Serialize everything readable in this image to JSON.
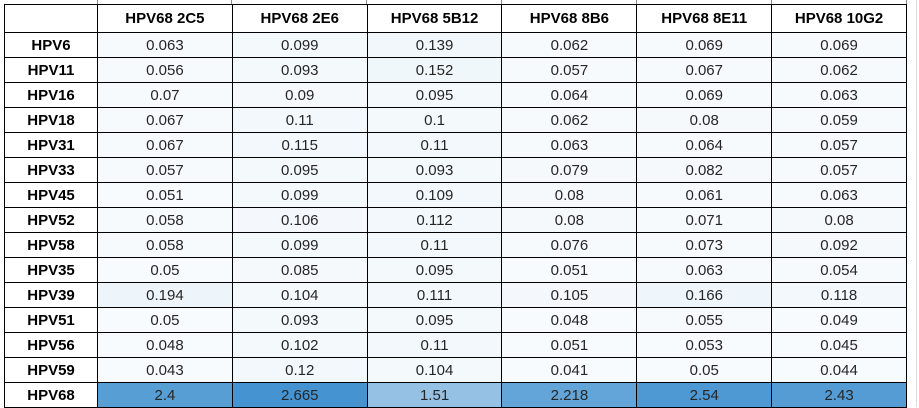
{
  "chart_data": {
    "type": "heatmap",
    "title": "",
    "corner_label": "",
    "columns": [
      "HPV68 2C5",
      "HPV68 2E6",
      "HPV68 5B12",
      "HPV68 8B6",
      "HPV68 8E11",
      "HPV68 10G2"
    ],
    "row_labels": [
      "HPV6",
      "HPV11",
      "HPV16",
      "HPV18",
      "HPV31",
      "HPV33",
      "HPV45",
      "HPV52",
      "HPV58",
      "HPV35",
      "HPV39",
      "HPV51",
      "HPV56",
      "HPV59",
      "HPV68"
    ],
    "values": [
      [
        "0.063",
        "0.099",
        "0.139",
        "0.062",
        "0.069",
        "0.069"
      ],
      [
        "0.056",
        "0.093",
        "0.152",
        "0.057",
        "0.067",
        "0.062"
      ],
      [
        "0.07",
        "0.09",
        "0.095",
        "0.064",
        "0.069",
        "0.063"
      ],
      [
        "0.067",
        "0.11",
        "0.1",
        "0.062",
        "0.08",
        "0.059"
      ],
      [
        "0.067",
        "0.115",
        "0.11",
        "0.063",
        "0.064",
        "0.057"
      ],
      [
        "0.057",
        "0.095",
        "0.093",
        "0.079",
        "0.082",
        "0.057"
      ],
      [
        "0.051",
        "0.099",
        "0.109",
        "0.08",
        "0.061",
        "0.063"
      ],
      [
        "0.058",
        "0.106",
        "0.112",
        "0.08",
        "0.071",
        "0.08"
      ],
      [
        "0.058",
        "0.099",
        "0.11",
        "0.076",
        "0.073",
        "0.092"
      ],
      [
        "0.05",
        "0.085",
        "0.095",
        "0.051",
        "0.063",
        "0.054"
      ],
      [
        "0.194",
        "0.104",
        "0.111",
        "0.105",
        "0.166",
        "0.118"
      ],
      [
        "0.05",
        "0.093",
        "0.095",
        "0.048",
        "0.055",
        "0.049"
      ],
      [
        "0.048",
        "0.102",
        "0.11",
        "0.051",
        "0.053",
        "0.045"
      ],
      [
        "0.043",
        "0.12",
        "0.104",
        "0.041",
        "0.05",
        "0.044"
      ],
      [
        "2.4",
        "2.665",
        "1.51",
        "2.218",
        "2.54",
        "2.43"
      ]
    ],
    "color_scale": {
      "low_color": "#F8FBFD",
      "high_color": "#4593D1",
      "min_value": 0.041,
      "max_value": 2.665
    },
    "grid": true,
    "legend": "none",
    "border_color": "#000000",
    "gridline_stub_top_color": "#8c8c8c",
    "gridline_stub_bottom_color": "#ccd4dc",
    "gridline_right_color": "#d9d9d9"
  }
}
